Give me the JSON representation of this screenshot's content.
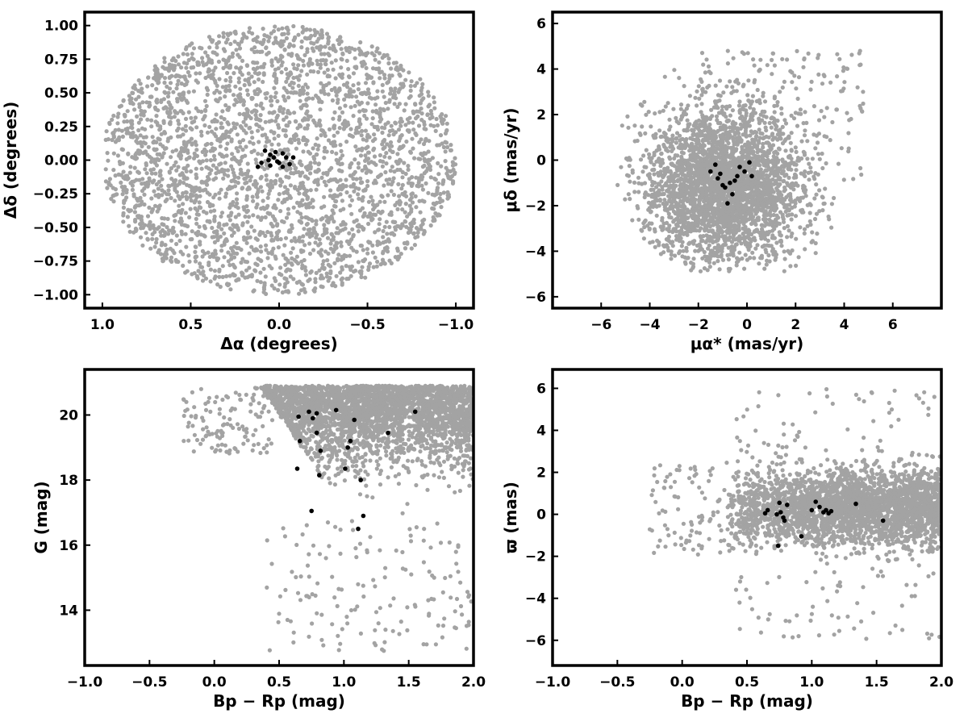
{
  "colors": {
    "field": "#a3a3a3",
    "members": "#000000"
  },
  "chart_data": [
    {
      "type": "scatter",
      "xlabel": "Δα (degrees)",
      "ylabel": "Δδ (degrees)",
      "xlim": [
        1.1,
        -1.1
      ],
      "ylim": [
        -1.1,
        1.1
      ],
      "xticks": [
        1.0,
        0.5,
        0.0,
        -0.5,
        -1.0
      ],
      "yticks": [
        -1.0,
        -0.75,
        -0.5,
        -0.25,
        0.0,
        0.25,
        0.5,
        0.75,
        1.0
      ],
      "xticklabels": [
        "1.0",
        "0.5",
        "0.0",
        "−0.5",
        "−1.0"
      ],
      "yticklabels": [
        "−1.00",
        "−0.75",
        "−0.50",
        "−0.25",
        "0.00",
        "0.25",
        "0.50",
        "0.75",
        "1.00"
      ],
      "field": {
        "count": 3000,
        "shape": "ellipse",
        "center": [
          0.0,
          0.0
        ],
        "radius": [
          1.0,
          1.0
        ]
      },
      "members": [
        [
          0.08,
          0.07
        ],
        [
          0.05,
          0.04
        ],
        [
          0.02,
          0.06
        ],
        [
          0.03,
          0.02
        ],
        [
          -0.02,
          0.05
        ],
        [
          -0.04,
          0.02
        ],
        [
          0.0,
          -0.02
        ],
        [
          -0.06,
          -0.03
        ],
        [
          -0.02,
          -0.05
        ],
        [
          0.05,
          -0.04
        ],
        [
          0.1,
          -0.02
        ],
        [
          0.12,
          -0.05
        ],
        [
          -0.08,
          0.02
        ],
        [
          0.01,
          -0.01
        ],
        [
          0.06,
          0.0
        ]
      ]
    },
    {
      "type": "scatter",
      "xlabel": "μα* (mas/yr)",
      "ylabel": "μδ (mas/yr)",
      "xlim": [
        -8,
        8
      ],
      "ylim": [
        -6.5,
        6.5
      ],
      "xticks": [
        -6,
        -4,
        -2,
        0,
        2,
        4,
        6
      ],
      "yticks": [
        -6,
        -4,
        -2,
        0,
        2,
        4,
        6
      ],
      "xticklabels": [
        "−6",
        "−4",
        "−2",
        "0",
        "2",
        "4",
        "6"
      ],
      "yticklabels": [
        "−6",
        "−4",
        "−2",
        "0",
        "2",
        "4",
        "6"
      ],
      "field": {
        "count": 3000,
        "shape": "blob",
        "center": [
          -1.0,
          -1.2
        ],
        "spread": [
          1.6,
          1.7
        ]
      },
      "members": [
        [
          -1.5,
          -0.5
        ],
        [
          -1.3,
          -0.2
        ],
        [
          -1.2,
          -0.8
        ],
        [
          -1.1,
          -0.6
        ],
        [
          -1.0,
          -1.1
        ],
        [
          -0.9,
          -1.2
        ],
        [
          -0.7,
          -1.0
        ],
        [
          -0.6,
          -1.5
        ],
        [
          -0.5,
          -0.9
        ],
        [
          -0.4,
          -0.7
        ],
        [
          -0.3,
          -0.3
        ],
        [
          -0.1,
          -0.5
        ],
        [
          0.1,
          -0.1
        ],
        [
          0.2,
          -0.7
        ],
        [
          -0.8,
          -1.9
        ]
      ]
    },
    {
      "type": "scatter",
      "xlabel": "Bp − Rp (mag)",
      "ylabel": "G (mag)",
      "xlim": [
        -1.0,
        2.0
      ],
      "ylim": [
        12.3,
        21.4
      ],
      "xticks": [
        -1.0,
        -0.5,
        0.0,
        0.5,
        1.0,
        1.5,
        2.0
      ],
      "yticks": [
        14,
        16,
        18,
        20
      ],
      "xticklabels": [
        "−1.0",
        "−0.5",
        "0.0",
        "0.5",
        "1.0",
        "1.5",
        "2.0"
      ],
      "yticklabels": [
        "14",
        "16",
        "18",
        "20"
      ],
      "field": {
        "count": 3000,
        "shape": "cmd",
        "maglimit": 20.9
      },
      "members": [
        [
          0.65,
          19.95
        ],
        [
          0.73,
          20.1
        ],
        [
          0.76,
          19.9
        ],
        [
          0.79,
          20.05
        ],
        [
          0.79,
          19.45
        ],
        [
          0.82,
          18.9
        ],
        [
          0.66,
          19.2
        ],
        [
          0.64,
          18.35
        ],
        [
          0.81,
          18.15
        ],
        [
          0.75,
          17.05
        ],
        [
          0.94,
          20.15
        ],
        [
          1.08,
          19.85
        ],
        [
          1.05,
          19.2
        ],
        [
          1.03,
          19.0
        ],
        [
          1.01,
          18.35
        ],
        [
          1.13,
          18.0
        ],
        [
          1.15,
          16.9
        ],
        [
          1.11,
          16.5
        ],
        [
          1.34,
          19.45
        ],
        [
          1.55,
          20.1
        ]
      ]
    },
    {
      "type": "scatter",
      "xlabel": "Bp − Rp (mag)",
      "ylabel": "ϖ (mas)",
      "xlim": [
        -1.0,
        2.0
      ],
      "ylim": [
        -7.2,
        6.9
      ],
      "xticks": [
        -1.0,
        -0.5,
        0.0,
        0.5,
        1.0,
        1.5,
        2.0
      ],
      "yticks": [
        -6,
        -4,
        -2,
        0,
        2,
        4,
        6
      ],
      "xticklabels": [
        "−1.0",
        "−0.5",
        "0.0",
        "0.5",
        "1.0",
        "1.5",
        "2.0"
      ],
      "yticklabels": [
        "−6",
        "−4",
        "−2",
        "0",
        "2",
        "4",
        "6"
      ],
      "field": {
        "count": 3000,
        "shape": "band",
        "center_y": 0.3,
        "spread_y": 0.9
      },
      "members": [
        [
          0.64,
          0.05
        ],
        [
          0.66,
          0.2
        ],
        [
          0.73,
          0.0
        ],
        [
          0.75,
          0.55
        ],
        [
          0.76,
          0.1
        ],
        [
          0.78,
          -0.15
        ],
        [
          0.79,
          -0.3
        ],
        [
          0.81,
          0.45
        ],
        [
          0.74,
          -1.5
        ],
        [
          0.92,
          -1.05
        ],
        [
          1.0,
          0.2
        ],
        [
          1.03,
          0.6
        ],
        [
          1.06,
          0.35
        ],
        [
          1.09,
          0.1
        ],
        [
          1.11,
          0.2
        ],
        [
          1.13,
          0.05
        ],
        [
          1.15,
          0.15
        ],
        [
          1.34,
          0.5
        ],
        [
          1.55,
          -0.3
        ]
      ]
    }
  ]
}
